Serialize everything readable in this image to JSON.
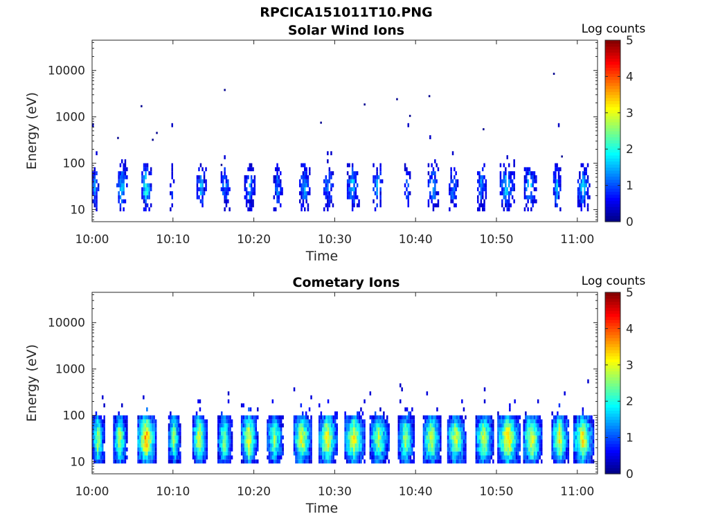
{
  "figure": {
    "filename": "RPCICA151011T10.PNG"
  },
  "chart_data": [
    {
      "type": "heatmap",
      "title": "Solar Wind Ions",
      "xlabel": "Time",
      "ylabel": "Energy (eV)",
      "x_tick_labels": [
        "10:00",
        "10:10",
        "10:20",
        "10:30",
        "10:40",
        "10:50",
        "11:00"
      ],
      "x_tick_minutes": [
        0,
        10,
        20,
        30,
        40,
        50,
        60
      ],
      "xlim_minutes": [
        0,
        62.5
      ],
      "yscale": "log",
      "ylim": [
        5.5,
        45000
      ],
      "y_tick_labels": [
        "10",
        "100",
        "1000",
        "10000"
      ],
      "y_tick_values": [
        10,
        100,
        1000,
        10000
      ],
      "colorbar": {
        "label": "Log counts",
        "range": [
          0,
          5
        ],
        "ticks": [
          "0",
          "1",
          "2",
          "3",
          "4",
          "5"
        ],
        "colormap": "jet"
      },
      "grid": false,
      "sweep_start_minutes": [
        0,
        3.0,
        6.1,
        9.6,
        12.9,
        15.9,
        18.8,
        22.4,
        25.6,
        28.6,
        31.5,
        34.7,
        38.6,
        41.5,
        44.1,
        47.6,
        50.4,
        53.4,
        57.0,
        60.0
      ],
      "sweep_peak": [
        1.7,
        1.7,
        2.2,
        1.2,
        1.5,
        1.4,
        1.5,
        1.3,
        1.6,
        1.3,
        1.6,
        1.6,
        1.2,
        1.4,
        1.3,
        1.3,
        1.7,
        1.7,
        1.7,
        1.7
      ],
      "sweep_width_minutes": [
        0.9,
        1.4,
        1.3,
        0.6,
        1.3,
        1.2,
        1.4,
        1.2,
        1.4,
        1.3,
        1.6,
        1.3,
        0.8,
        1.4,
        1.2,
        1.2,
        1.9,
        1.6,
        1.0,
        1.6
      ],
      "isolated_points": [
        {
          "t": 3.1,
          "e": 350
        },
        {
          "t": 6.0,
          "e": 1700
        },
        {
          "t": 7.4,
          "e": 320
        },
        {
          "t": 7.9,
          "e": 450
        },
        {
          "t": 15.9,
          "e": 92
        },
        {
          "t": 16.3,
          "e": 3800
        },
        {
          "t": 28.2,
          "e": 750
        },
        {
          "t": 33.6,
          "e": 1850
        },
        {
          "t": 37.6,
          "e": 2400
        },
        {
          "t": 39.2,
          "e": 1050
        },
        {
          "t": 41.6,
          "e": 2800
        },
        {
          "t": 48.3,
          "e": 540
        },
        {
          "t": 57.0,
          "e": 8500
        },
        {
          "t": 58.0,
          "e": 140
        }
      ]
    },
    {
      "type": "heatmap",
      "title": "Cometary Ions",
      "xlabel": "Time",
      "ylabel": "Energy (eV)",
      "x_tick_labels": [
        "10:00",
        "10:10",
        "10:20",
        "10:30",
        "10:40",
        "10:50",
        "11:00"
      ],
      "x_tick_minutes": [
        0,
        10,
        20,
        30,
        40,
        50,
        60
      ],
      "xlim_minutes": [
        0,
        62.5
      ],
      "yscale": "log",
      "ylim": [
        5.5,
        45000
      ],
      "y_tick_labels": [
        "10",
        "100",
        "1000",
        "10000"
      ],
      "y_tick_values": [
        10,
        100,
        1000,
        10000
      ],
      "colorbar": {
        "label": "Log counts",
        "range": [
          0,
          5
        ],
        "ticks": [
          "0",
          "1",
          "2",
          "3",
          "4",
          "5"
        ],
        "colormap": "jet"
      },
      "grid": false,
      "sweep_start_minutes": [
        0,
        2.6,
        5.6,
        9.4,
        12.4,
        15.5,
        18.4,
        21.6,
        24.9,
        28.0,
        31.2,
        34.3,
        37.8,
        40.9,
        43.9,
        47.4,
        50.1,
        53.3,
        56.8,
        59.5
      ],
      "sweep_peak": [
        2.8,
        2.9,
        3.7,
        2.6,
        3.1,
        2.6,
        3.1,
        2.6,
        3.2,
        3.3,
        3.2,
        2.7,
        2.7,
        3.1,
        3.0,
        3.0,
        3.4,
        3.3,
        3.1,
        3.2
      ],
      "sweep_width_minutes": [
        1.6,
        1.8,
        2.4,
        1.6,
        1.9,
        1.9,
        2.2,
        2.1,
        2.3,
        2.4,
        2.6,
        2.5,
        2.1,
        2.3,
        2.4,
        2.3,
        2.9,
        2.4,
        2.2,
        2.6
      ]
    }
  ]
}
